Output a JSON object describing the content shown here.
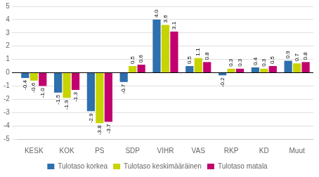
{
  "chart_data": {
    "type": "bar",
    "categories": [
      "KESK",
      "KOK",
      "PS",
      "SDP",
      "VIHR",
      "VAS",
      "RKP",
      "KD",
      "Muut"
    ],
    "series": [
      {
        "name": "Tulotaso korkea",
        "color": "#2e6fad",
        "values": [
          -0.4,
          -1.5,
          -2.9,
          -0.7,
          4.0,
          0.5,
          -0.2,
          0.4,
          0.9
        ],
        "value_labels": [
          "-0.4",
          "-1.5",
          "-2.9",
          "-0.7",
          "4.0",
          "0.5",
          "-0.2",
          "0.4",
          "0.9"
        ]
      },
      {
        "name": "Tulotaso keskimääräinen",
        "color": "#c8d400",
        "values": [
          -0.6,
          -1.9,
          -3.8,
          0.5,
          3.6,
          1.1,
          0.3,
          0.3,
          0.7
        ],
        "value_labels": [
          "-0.6",
          "-1.9",
          "-3.8",
          "0.5",
          "3.6",
          "1.1",
          "0.3",
          "0.3",
          "0.7"
        ]
      },
      {
        "name": "Tulotaso matala",
        "color": "#c2006e",
        "values": [
          -1.0,
          -1.3,
          -3.7,
          0.6,
          3.1,
          0.8,
          0.3,
          0.5,
          0.8
        ],
        "value_labels": [
          "-1.0",
          "-1.3",
          "-3.7",
          "0.6",
          "3.1",
          "0.8",
          "0.3",
          "0.5",
          "0.8"
        ]
      }
    ],
    "ylim": [
      -5,
      5
    ],
    "yticks": [
      -5,
      -4,
      -3,
      -2,
      -1,
      0,
      1,
      2,
      3,
      4,
      5
    ],
    "grid": true,
    "legend": "bottom",
    "data_labels": true
  }
}
